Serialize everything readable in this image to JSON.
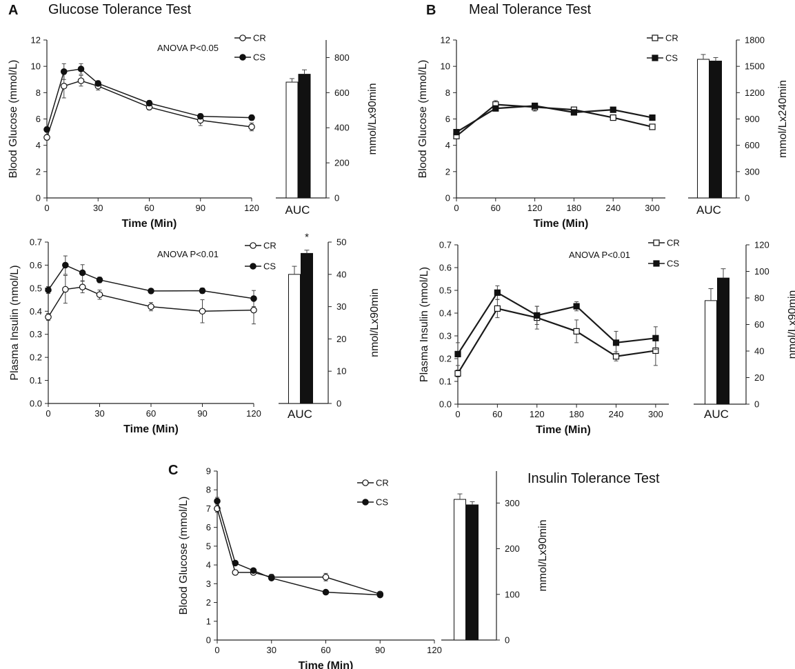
{
  "chart_data": [
    {
      "id": "glucose-gtt",
      "type": "line",
      "panel_letter": "A",
      "title": "Glucose Tolerance Test",
      "annotation": "ANOVA P<0.05",
      "xlabel": "Time (Min)",
      "ylabel": "Blood Glucose (mmol/L)",
      "x": [
        0,
        10,
        20,
        30,
        60,
        90,
        120
      ],
      "xticks": [
        0,
        30,
        60,
        90,
        120
      ],
      "xlim": [
        0,
        120
      ],
      "ylim": [
        0,
        12
      ],
      "yticks": [
        0,
        2,
        4,
        6,
        8,
        10,
        12
      ],
      "marker": "circle",
      "series": [
        {
          "name": "CR",
          "values": [
            4.6,
            8.5,
            8.9,
            8.5,
            6.9,
            5.9,
            5.4
          ],
          "err": [
            0.2,
            0.9,
            0.4,
            0.3,
            0.2,
            0.4,
            0.3
          ]
        },
        {
          "name": "CS",
          "values": [
            5.2,
            9.6,
            9.8,
            8.7,
            7.2,
            6.2,
            6.1
          ],
          "err": [
            0.2,
            0.6,
            0.4,
            0.2,
            0.2,
            0.2,
            0.2
          ]
        }
      ],
      "auc": {
        "label": "AUC",
        "ylabel": "mmol/Lx90min",
        "ylim": [
          0,
          900
        ],
        "yticks": [
          0,
          200,
          400,
          600,
          800
        ],
        "values": [
          660,
          705
        ],
        "err": [
          20,
          25
        ],
        "sig": ""
      }
    },
    {
      "id": "glucose-mtt",
      "type": "line",
      "panel_letter": "B",
      "title": "Meal Tolerance Test",
      "annotation": "",
      "xlabel": "Time (Min)",
      "ylabel": "Blood Glucose (mmol/L)",
      "x": [
        0,
        60,
        120,
        180,
        240,
        300
      ],
      "xticks": [
        0,
        60,
        120,
        180,
        240,
        300
      ],
      "xlim": [
        0,
        320
      ],
      "ylim": [
        0,
        12
      ],
      "yticks": [
        0,
        2,
        4,
        6,
        8,
        10,
        12
      ],
      "marker": "square",
      "series": [
        {
          "name": "CR",
          "values": [
            4.7,
            7.1,
            6.9,
            6.7,
            6.1,
            5.4
          ],
          "err": [
            0.2,
            0.3,
            0.3,
            0.2,
            0.1,
            0.2
          ]
        },
        {
          "name": "CS",
          "values": [
            5.0,
            6.8,
            7.0,
            6.5,
            6.7,
            6.1
          ],
          "err": [
            0.2,
            0.2,
            0.2,
            0.2,
            0.1,
            0.1
          ]
        }
      ],
      "auc": {
        "label": "AUC",
        "ylabel": "mmol/Lx240min",
        "ylim": [
          0,
          1800
        ],
        "yticks": [
          0,
          300,
          600,
          900,
          1200,
          1500,
          1800
        ],
        "values": [
          1580,
          1560
        ],
        "err": [
          55,
          40
        ],
        "sig": ""
      }
    },
    {
      "id": "insulin-gtt",
      "type": "line",
      "panel_letter": "",
      "title": "",
      "annotation": "ANOVA P<0.01",
      "xlabel": "Time (Min)",
      "ylabel": "Plasma Insulin (nmol/L)",
      "x": [
        0,
        10,
        20,
        30,
        60,
        90,
        120
      ],
      "xticks": [
        0,
        30,
        60,
        90,
        120
      ],
      "xlim": [
        0,
        120
      ],
      "ylim": [
        0,
        0.7
      ],
      "yticks": [
        0.0,
        0.1,
        0.2,
        0.3,
        0.4,
        0.5,
        0.6,
        0.7
      ],
      "tick_decimals": 1,
      "marker": "circle",
      "series": [
        {
          "name": "CR",
          "values": [
            0.375,
            0.495,
            0.505,
            0.472,
            0.42,
            0.4,
            0.405
          ],
          "err": [
            0.015,
            0.06,
            0.025,
            0.02,
            0.018,
            0.05,
            0.06
          ]
        },
        {
          "name": "CS",
          "values": [
            0.492,
            0.6,
            0.567,
            0.536,
            0.488,
            0.489,
            0.455
          ],
          "err": [
            0.015,
            0.04,
            0.035,
            0.012,
            0.01,
            0.012,
            0.035
          ]
        }
      ],
      "auc": {
        "label": "AUC",
        "ylabel": "nmol/Lx90min",
        "ylim": [
          0,
          50
        ],
        "yticks": [
          0,
          10,
          20,
          30,
          40,
          50
        ],
        "values": [
          40,
          46.5
        ],
        "err": [
          2.5,
          1.0
        ],
        "sig": "*"
      }
    },
    {
      "id": "insulin-mtt",
      "type": "line",
      "panel_letter": "",
      "title": "",
      "annotation": "ANOVA P<0.01",
      "xlabel": "Time (Min)",
      "ylabel": "Plasma Insulin (nmol/L)",
      "x": [
        0,
        60,
        120,
        180,
        240,
        300
      ],
      "xticks": [
        0,
        60,
        120,
        180,
        240,
        300
      ],
      "xlim": [
        0,
        320
      ],
      "ylim": [
        0,
        0.7
      ],
      "yticks": [
        0.0,
        0.1,
        0.2,
        0.3,
        0.4,
        0.5,
        0.6,
        0.7
      ],
      "tick_decimals": 1,
      "marker": "square",
      "series": [
        {
          "name": "CR",
          "values": [
            0.135,
            0.42,
            0.38,
            0.32,
            0.21,
            0.235
          ],
          "err": [
            0.015,
            0.04,
            0.05,
            0.05,
            0.02,
            0.065
          ]
        },
        {
          "name": "CS",
          "values": [
            0.22,
            0.49,
            0.39,
            0.43,
            0.27,
            0.29
          ],
          "err": [
            0.05,
            0.03,
            0.04,
            0.02,
            0.05,
            0.05
          ]
        }
      ],
      "auc": {
        "label": "AUC",
        "ylabel": "nmol/Lx90min",
        "ylim": [
          0,
          120
        ],
        "yticks": [
          0,
          20,
          40,
          60,
          80,
          100,
          120
        ],
        "values": [
          78,
          95
        ],
        "err": [
          9,
          7
        ],
        "sig": ""
      }
    },
    {
      "id": "itt",
      "type": "line",
      "panel_letter": "C",
      "title": "Insulin Tolerance Test",
      "annotation": "",
      "xlabel": "Time (Min)",
      "ylabel": "Blood Glucose (mmol/L)",
      "x": [
        0,
        10,
        20,
        30,
        60,
        90
      ],
      "xticks": [
        0,
        30,
        60,
        90,
        120
      ],
      "xlim": [
        0,
        120
      ],
      "ylim": [
        0,
        9
      ],
      "yticks": [
        0,
        1,
        2,
        3,
        4,
        5,
        6,
        7,
        8,
        9
      ],
      "marker": "circle",
      "series": [
        {
          "name": "CR",
          "values": [
            7.0,
            3.6,
            3.6,
            3.35,
            3.35,
            2.45
          ],
          "err": [
            0.2,
            0.1,
            0.1,
            0.15,
            0.2,
            0.1
          ]
        },
        {
          "name": "CS",
          "values": [
            7.4,
            4.1,
            3.7,
            3.3,
            2.55,
            2.4
          ],
          "err": [
            0.2,
            0.1,
            0.1,
            0.1,
            0.1,
            0.1
          ]
        }
      ],
      "auc": {
        "label": "",
        "ylabel": "mmol/Lx90min",
        "ylim": [
          0,
          370
        ],
        "yticks": [
          0,
          100,
          200,
          300
        ],
        "values": [
          308,
          296
        ],
        "err": [
          12,
          7
        ],
        "sig": ""
      }
    }
  ]
}
